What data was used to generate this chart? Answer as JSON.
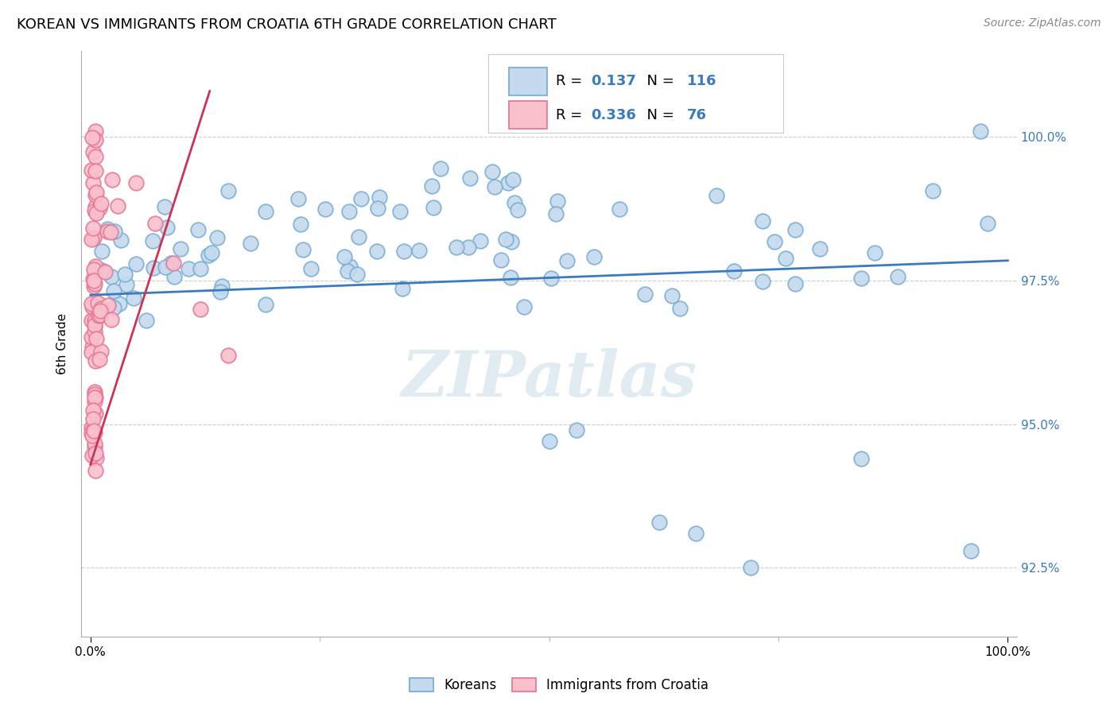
{
  "title": "KOREAN VS IMMIGRANTS FROM CROATIA 6TH GRADE CORRELATION CHART",
  "source": "Source: ZipAtlas.com",
  "ylabel": "6th Grade",
  "ytick_values": [
    92.5,
    95.0,
    97.5,
    100.0
  ],
  "ytick_labels": [
    "92.5%",
    "95.0%",
    "97.5%",
    "100.0%"
  ],
  "ylim": [
    91.3,
    101.5
  ],
  "xlim": [
    -0.01,
    1.01
  ],
  "legend_r_blue": "0.137",
  "legend_n_blue": "116",
  "legend_r_pink": "0.336",
  "legend_n_pink": "76",
  "blue_face": "#c5daee",
  "blue_edge": "#7bafd4",
  "pink_face": "#f9c0cc",
  "pink_edge": "#e87898",
  "line_blue": "#3a7abf",
  "line_pink": "#cc3355",
  "watermark": "ZIPatlas",
  "watermark_color": "#dce8f0",
  "grid_color": "#cccccc",
  "right_tick_color": "#3a7abf",
  "title_fontsize": 13,
  "source_fontsize": 10,
  "legend_fontsize": 13,
  "scatter_size": 180,
  "blue_line_x": [
    0.0,
    1.0
  ],
  "blue_line_y": [
    97.25,
    97.85
  ],
  "pink_line_x": [
    0.0,
    0.13
  ],
  "pink_line_y": [
    94.3,
    100.8
  ]
}
